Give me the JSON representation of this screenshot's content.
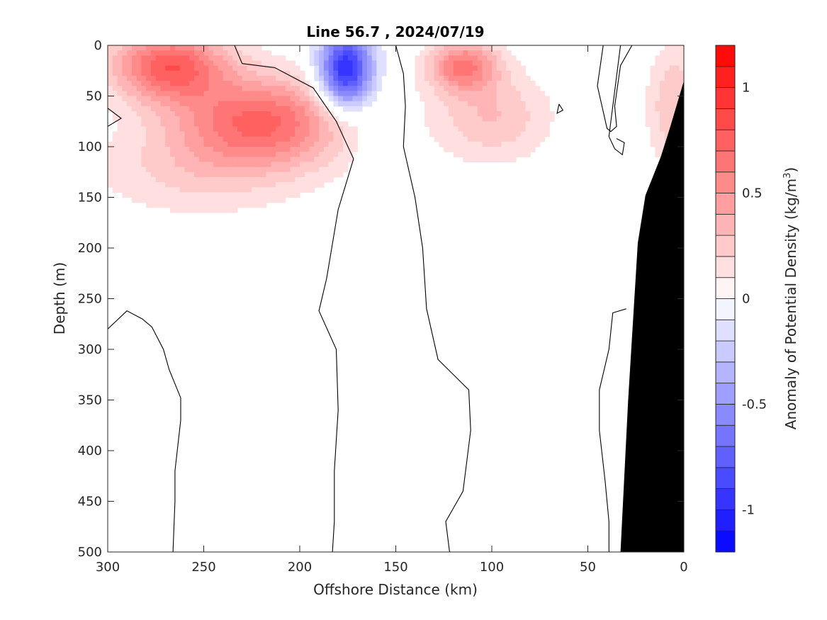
{
  "chart_data": {
    "type": "heatmap",
    "title": "Line 56.7 , 2024/07/19",
    "xlabel": "Offshore Distance (km)",
    "ylabel": "Depth (m)",
    "xlim": [
      300,
      0
    ],
    "ylim": [
      0,
      500
    ],
    "x_ticks": [
      300,
      250,
      200,
      150,
      100,
      50,
      0
    ],
    "y_ticks": [
      0,
      50,
      100,
      150,
      200,
      250,
      300,
      350,
      400,
      450,
      500
    ],
    "x_tick_labels": [
      "300",
      "250",
      "200",
      "150",
      "100",
      "50",
      "0"
    ],
    "y_tick_labels": [
      "0",
      "50",
      "100",
      "150",
      "200",
      "250",
      "300",
      "350",
      "400",
      "450",
      "500"
    ],
    "colorbar": {
      "label_prefix": "Anomaly of Potential Density (kg/m",
      "label_sup": "3",
      "label_suffix": ")",
      "range": [
        -1.2,
        1.2
      ],
      "levels": 24,
      "ticks": [
        -1,
        -0.5,
        0,
        0.5,
        1
      ],
      "tick_labels": [
        "-1",
        "-0.5",
        "0",
        "0.5",
        "1"
      ],
      "negative_color": "#0000ff",
      "positive_color": "#ff0000"
    },
    "anomaly_features": [
      {
        "kind": "positive",
        "x": 268,
        "depth": 20,
        "peak": 0.75,
        "sx": 30,
        "sy": 35
      },
      {
        "kind": "positive",
        "x": 220,
        "depth": 75,
        "peak": 0.7,
        "sx": 45,
        "sy": 45
      },
      {
        "kind": "positive",
        "x": 255,
        "depth": 125,
        "peak": 0.2,
        "sx": 55,
        "sy": 45
      },
      {
        "kind": "negative",
        "x": 176,
        "depth": 25,
        "peak": -1.05,
        "sx": 14,
        "sy": 38
      },
      {
        "kind": "negative",
        "x": 160,
        "depth": 110,
        "peak": -0.15,
        "sx": 10,
        "sy": 30
      },
      {
        "kind": "positive",
        "x": 115,
        "depth": 20,
        "peak": 0.6,
        "sx": 18,
        "sy": 25
      },
      {
        "kind": "positive",
        "x": 100,
        "depth": 70,
        "peak": 0.3,
        "sx": 30,
        "sy": 45
      },
      {
        "kind": "positive",
        "x": 5,
        "depth": 60,
        "peak": 0.3,
        "sx": 14,
        "sy": 60
      }
    ],
    "zero_contours": [
      [
        [
          234,
          0
        ],
        [
          230,
          18
        ],
        [
          213,
          22
        ],
        [
          193,
          42
        ],
        [
          181,
          75
        ],
        [
          172,
          112
        ],
        [
          180,
          162
        ],
        [
          186,
          230
        ],
        [
          190,
          262
        ],
        [
          181,
          300
        ],
        [
          180,
          360
        ],
        [
          182,
          420
        ],
        [
          182,
          470
        ],
        [
          183,
          500
        ]
      ],
      [
        [
          150,
          0
        ],
        [
          146,
          28
        ],
        [
          145,
          60
        ],
        [
          146,
          100
        ],
        [
          140,
          150
        ],
        [
          136,
          200
        ],
        [
          134,
          260
        ],
        [
          128,
          310
        ],
        [
          112,
          340
        ],
        [
          111,
          380
        ],
        [
          115,
          440
        ],
        [
          124,
          470
        ],
        [
          122,
          500
        ]
      ],
      [
        [
          300,
          280
        ],
        [
          290,
          262
        ],
        [
          282,
          270
        ],
        [
          277,
          278
        ],
        [
          271,
          300
        ],
        [
          268,
          320
        ],
        [
          262,
          348
        ],
        [
          262,
          370
        ],
        [
          265,
          420
        ],
        [
          265,
          450
        ],
        [
          266,
          500
        ]
      ],
      [
        [
          300,
          62
        ],
        [
          293,
          72
        ],
        [
          300,
          80
        ]
      ],
      [
        [
          33,
          0
        ],
        [
          39,
          90
        ],
        [
          36,
          102
        ],
        [
          32,
          108
        ],
        [
          31,
          96
        ],
        [
          35,
          92
        ]
      ],
      [
        [
          42,
          0
        ],
        [
          45,
          40
        ],
        [
          40,
          82
        ],
        [
          38,
          85
        ],
        [
          35,
          80
        ],
        [
          36,
          60
        ],
        [
          33,
          20
        ],
        [
          27,
          0
        ]
      ],
      [
        [
          30,
          260
        ],
        [
          37,
          264
        ],
        [
          39,
          300
        ],
        [
          44,
          340
        ],
        [
          44,
          380
        ],
        [
          41,
          430
        ],
        [
          39,
          470
        ],
        [
          39,
          500
        ]
      ],
      [
        [
          65,
          58
        ],
        [
          63,
          64
        ],
        [
          66,
          67
        ],
        [
          65,
          58
        ]
      ]
    ],
    "bottom_profile": [
      [
        0,
        35
      ],
      [
        7,
        80
      ],
      [
        12,
        110
      ],
      [
        20,
        148
      ],
      [
        24,
        195
      ],
      [
        29,
        350
      ],
      [
        33,
        500
      ]
    ],
    "bottom_color": "#000000"
  }
}
